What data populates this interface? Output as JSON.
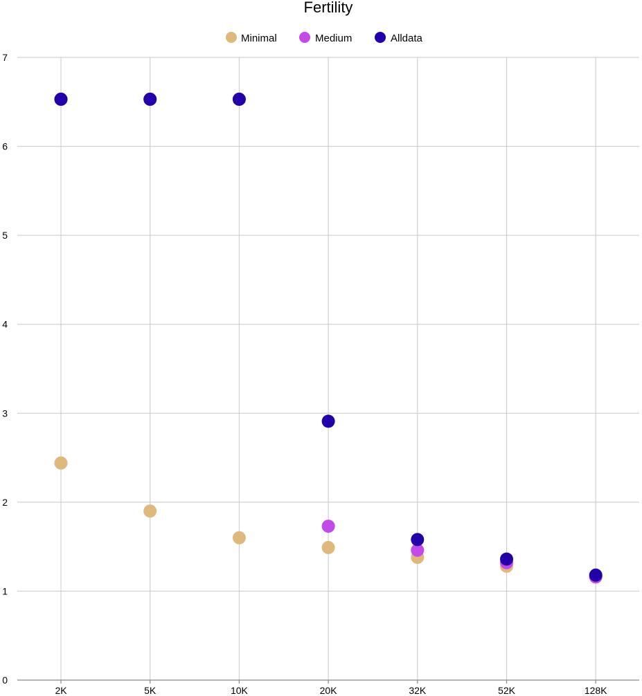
{
  "chart_data": {
    "type": "scatter",
    "title": "Fertility",
    "categories": [
      "2K",
      "5K",
      "10K",
      "20K",
      "32K",
      "52K",
      "128K"
    ],
    "ylim": [
      0,
      7
    ],
    "yticks": [
      0,
      1,
      2,
      3,
      4,
      5,
      6,
      7
    ],
    "grid": true,
    "legend_position": "top",
    "series": [
      {
        "name": "Minimal",
        "color": "#dfb97c",
        "values": [
          2.44,
          1.9,
          1.6,
          1.49,
          1.38,
          1.28,
          1.16
        ]
      },
      {
        "name": "Medium",
        "color": "#c44ae8",
        "values": [
          6.53,
          6.53,
          6.53,
          1.73,
          1.46,
          1.32,
          1.16
        ]
      },
      {
        "name": "Alldata",
        "color": "#2200aa",
        "values": [
          6.53,
          6.53,
          6.53,
          2.91,
          1.58,
          1.36,
          1.18
        ]
      }
    ]
  }
}
